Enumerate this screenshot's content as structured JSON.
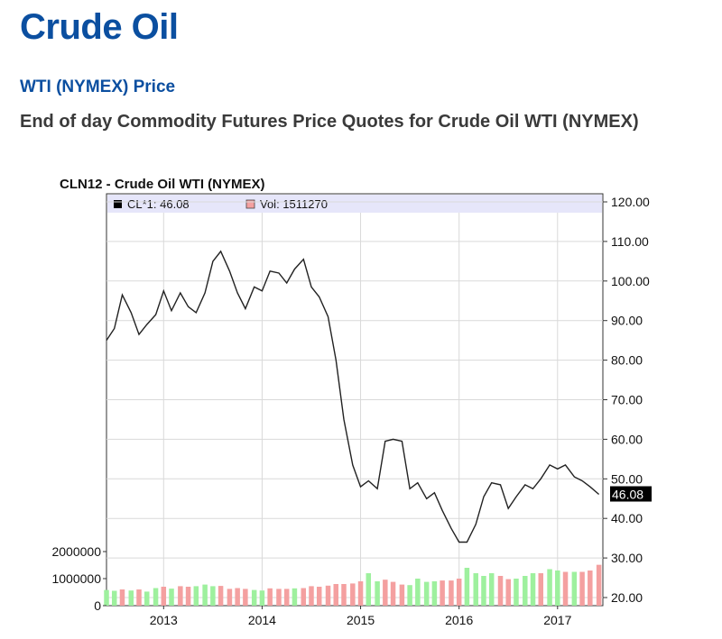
{
  "page": {
    "title": "Crude Oil",
    "subtitle_link": "WTI (NYMEX) Price",
    "description": "End of day Commodity Futures Price Quotes for Crude Oil WTI (NYMEX)"
  },
  "chart_data": {
    "type": "line",
    "title": "CLN12 - Crude Oil WTI (NYMEX)",
    "legend": [
      {
        "label": "CL*1: 46.08",
        "color": "#000000"
      },
      {
        "label": "Vol: 1511270",
        "color": "#f4a0a0"
      }
    ],
    "legend_placement": "top",
    "x_ticks": [
      "2013",
      "2014",
      "2015",
      "2016",
      "2017"
    ],
    "price_axis": {
      "side": "right",
      "ylim": [
        20,
        120
      ],
      "ticks": [
        "20.00",
        "30.00",
        "40.00",
        "50.00",
        "60.00",
        "70.00",
        "80.00",
        "90.00",
        "100.00",
        "110.00",
        "120.00"
      ],
      "last_value_label": "46.08"
    },
    "volume_axis": {
      "side": "left",
      "ylim": [
        0,
        2000000
      ],
      "ticks": [
        "0",
        "1000000",
        "2000000"
      ]
    },
    "grid": true,
    "series": [
      {
        "name": "CL*1",
        "kind": "line",
        "color": "#222222",
        "x": [
          2012.42,
          2012.5,
          2012.58,
          2012.67,
          2012.75,
          2012.83,
          2012.92,
          2013.0,
          2013.08,
          2013.17,
          2013.25,
          2013.33,
          2013.42,
          2013.5,
          2013.58,
          2013.67,
          2013.75,
          2013.83,
          2013.92,
          2014.0,
          2014.08,
          2014.17,
          2014.25,
          2014.33,
          2014.42,
          2014.5,
          2014.58,
          2014.67,
          2014.75,
          2014.83,
          2014.92,
          2015.0,
          2015.08,
          2015.17,
          2015.25,
          2015.33,
          2015.42,
          2015.5,
          2015.58,
          2015.67,
          2015.75,
          2015.83,
          2015.92,
          2016.0,
          2016.08,
          2016.17,
          2016.25,
          2016.33,
          2016.42,
          2016.5,
          2016.58,
          2016.67,
          2016.75,
          2016.83,
          2016.92,
          2017.0,
          2017.08,
          2017.17,
          2017.25,
          2017.33,
          2017.42
        ],
        "values": [
          85,
          88,
          96.5,
          92,
          86.5,
          89,
          91.5,
          97.5,
          92.5,
          97,
          93.5,
          92,
          97,
          105,
          107.5,
          102.5,
          97,
          93,
          98.5,
          97.5,
          102.5,
          102,
          99.5,
          103,
          105.5,
          98.5,
          96,
          91,
          80,
          65,
          53.5,
          48,
          49.5,
          47.5,
          59.5,
          60,
          59.5,
          47.5,
          49,
          45,
          46.5,
          42,
          37.5,
          34,
          34,
          38.5,
          45.5,
          49,
          48.5,
          42.5,
          45.5,
          48.5,
          47.5,
          50,
          53.5,
          52.5,
          53.5,
          50.5,
          49.5,
          48,
          46.08
        ]
      },
      {
        "name": "Vol",
        "kind": "bar",
        "x": [
          2012.42,
          2012.5,
          2012.58,
          2012.67,
          2012.75,
          2012.83,
          2012.92,
          2013.0,
          2013.08,
          2013.17,
          2013.25,
          2013.33,
          2013.42,
          2013.5,
          2013.58,
          2013.67,
          2013.75,
          2013.83,
          2013.92,
          2014.0,
          2014.08,
          2014.17,
          2014.25,
          2014.33,
          2014.42,
          2014.5,
          2014.58,
          2014.67,
          2014.75,
          2014.83,
          2014.92,
          2015.0,
          2015.08,
          2015.17,
          2015.25,
          2015.33,
          2015.42,
          2015.5,
          2015.58,
          2015.67,
          2015.75,
          2015.83,
          2015.92,
          2016.0,
          2016.08,
          2016.17,
          2016.25,
          2016.33,
          2016.42,
          2016.5,
          2016.58,
          2016.67,
          2016.75,
          2016.83,
          2016.92,
          2017.0,
          2017.08,
          2017.17,
          2017.25,
          2017.33,
          2017.42
        ],
        "values": [
          580000,
          550000,
          600000,
          560000,
          600000,
          520000,
          650000,
          700000,
          630000,
          720000,
          700000,
          720000,
          780000,
          720000,
          730000,
          620000,
          650000,
          620000,
          580000,
          560000,
          640000,
          620000,
          620000,
          640000,
          650000,
          720000,
          700000,
          740000,
          800000,
          800000,
          820000,
          900000,
          1200000,
          900000,
          960000,
          880000,
          780000,
          760000,
          1000000,
          880000,
          900000,
          930000,
          930000,
          1000000,
          1400000,
          1200000,
          1100000,
          1200000,
          1100000,
          980000,
          1000000,
          1100000,
          1200000,
          1200000,
          1350000,
          1300000,
          1250000,
          1250000,
          1250000,
          1300000,
          1511270
        ],
        "colors": [
          "#9ef09e",
          "#9ef09e",
          "#f4a0a0",
          "#9ef09e",
          "#f4a0a0",
          "#9ef09e",
          "#9ef09e",
          "#f4a0a0",
          "#9ef09e",
          "#f4a0a0",
          "#f4a0a0",
          "#9ef09e",
          "#9ef09e",
          "#9ef09e",
          "#f4a0a0",
          "#f4a0a0",
          "#f4a0a0",
          "#f4a0a0",
          "#9ef09e",
          "#9ef09e",
          "#f4a0a0",
          "#f4a0a0",
          "#f4a0a0",
          "#9ef09e",
          "#f4a0a0",
          "#f4a0a0",
          "#f4a0a0",
          "#f4a0a0",
          "#f4a0a0",
          "#f4a0a0",
          "#f4a0a0",
          "#f4a0a0",
          "#9ef09e",
          "#9ef09e",
          "#f4a0a0",
          "#f4a0a0",
          "#f4a0a0",
          "#9ef09e",
          "#9ef09e",
          "#9ef09e",
          "#9ef09e",
          "#f4a0a0",
          "#f4a0a0",
          "#f4a0a0",
          "#9ef09e",
          "#9ef09e",
          "#9ef09e",
          "#9ef09e",
          "#f4a0a0",
          "#f4a0a0",
          "#9ef09e",
          "#9ef09e",
          "#9ef09e",
          "#f4a0a0",
          "#9ef09e",
          "#9ef09e",
          "#f4a0a0",
          "#9ef09e",
          "#f4a0a0",
          "#f4a0a0",
          "#f4a0a0"
        ]
      }
    ]
  }
}
